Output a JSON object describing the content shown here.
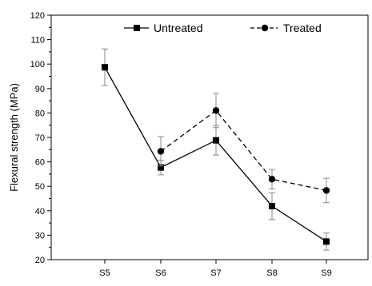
{
  "chart_data": {
    "type": "line",
    "title": "",
    "xlabel": "",
    "ylabel": "Flexural strength (MPa)",
    "categories": [
      "S5",
      "S6",
      "S7",
      "S8",
      "S9"
    ],
    "ylim": [
      20,
      120
    ],
    "yticks": [
      20,
      30,
      40,
      50,
      60,
      70,
      80,
      90,
      100,
      110,
      120
    ],
    "grid": false,
    "legend_position": "top",
    "series": [
      {
        "name": "Untreated",
        "marker": "square",
        "line_style": "solid",
        "color": "#000000",
        "values": [
          98.7,
          57.7,
          68.8,
          41.9,
          27.4
        ],
        "errors": [
          7.5,
          3.0,
          6.0,
          5.5,
          3.5
        ]
      },
      {
        "name": "Treated",
        "marker": "circle",
        "line_style": "dashed",
        "color": "#000000",
        "values": [
          null,
          64.3,
          81.0,
          52.9,
          48.3
        ],
        "errors": [
          null,
          6.0,
          7.0,
          4.0,
          5.0
        ]
      }
    ]
  }
}
